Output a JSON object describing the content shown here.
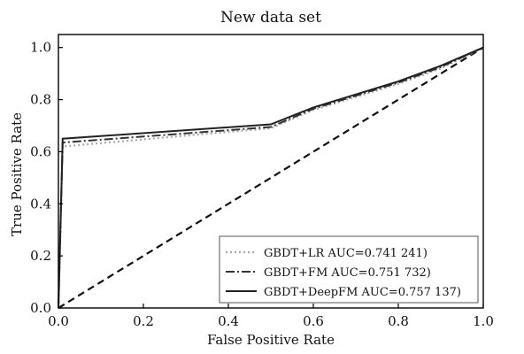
{
  "chart_data": {
    "type": "line",
    "title": "New data set",
    "xlabel": "False Positive Rate",
    "ylabel": "True Positive Rate",
    "xlim": [
      0,
      1
    ],
    "ylim": [
      0,
      1.05
    ],
    "xticks": [
      0.0,
      0.2,
      0.4,
      0.6,
      0.8,
      1.0
    ],
    "yticks": [
      0.0,
      0.2,
      0.4,
      0.6,
      0.8,
      1.0
    ],
    "xtick_labels": [
      "0.0",
      "0.2",
      "0.4",
      "0.6",
      "0.8",
      "1.0"
    ],
    "ytick_labels": [
      "0.0",
      "0.2",
      "0.4",
      "0.6",
      "0.8",
      "1.0"
    ],
    "grid": false,
    "legend_position": "bottom-right",
    "series": [
      {
        "name": "GBDT+LR AUC=0.741 241)",
        "style": "dotted",
        "color": "#a8a8a8",
        "x": [
          0.0,
          0.01,
          0.5,
          0.6,
          0.8,
          0.9,
          1.0
        ],
        "y": [
          0.0,
          0.62,
          0.69,
          0.76,
          0.86,
          0.92,
          1.0
        ]
      },
      {
        "name": "GBDT+FM AUC=0.751 732)",
        "style": "dashdot",
        "color": "#333333",
        "x": [
          0.0,
          0.01,
          0.5,
          0.6,
          0.8,
          0.9,
          1.0
        ],
        "y": [
          0.0,
          0.635,
          0.695,
          0.765,
          0.865,
          0.925,
          1.0
        ]
      },
      {
        "name": "GBDT+DeepFM AUC=0.757 137)",
        "style": "solid",
        "color": "#222222",
        "x": [
          0.0,
          0.01,
          0.5,
          0.6,
          0.8,
          0.9,
          1.0
        ],
        "y": [
          0.0,
          0.65,
          0.705,
          0.77,
          0.87,
          0.93,
          1.0
        ]
      }
    ],
    "reference_line": {
      "style": "dashed",
      "color": "#111111",
      "x": [
        0,
        1
      ],
      "y": [
        0,
        1
      ]
    }
  }
}
